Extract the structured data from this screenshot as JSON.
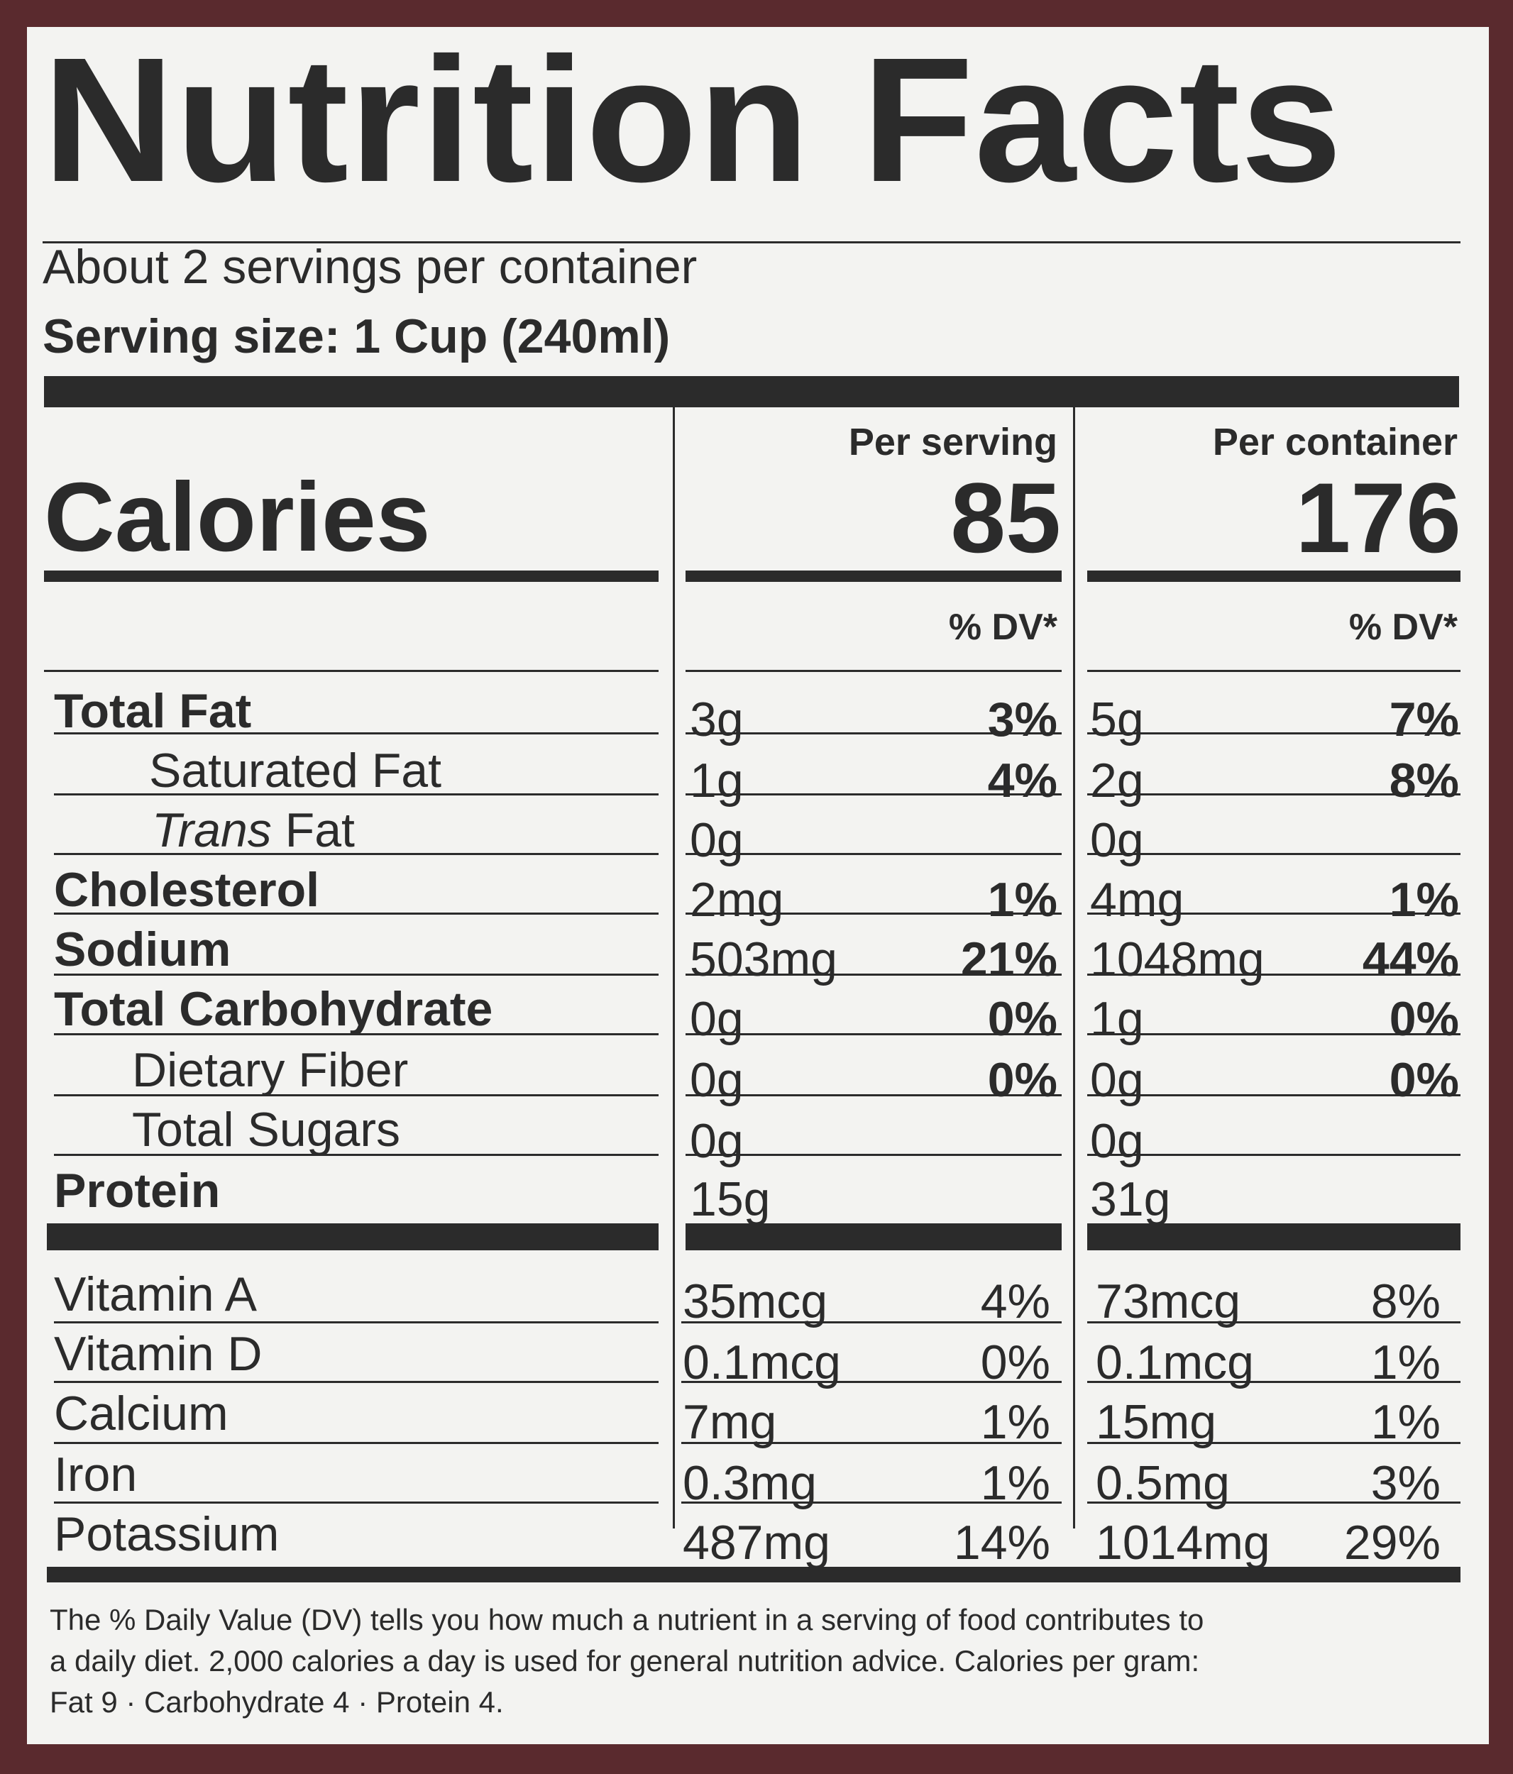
{
  "label": {
    "title": "Nutrition Facts",
    "servings_per_container": "About 2 servings per container",
    "serving_size": "Serving size: 1 Cup (240ml)",
    "calories_label": "Calories",
    "columns": [
      {
        "header": "Per serving",
        "calories": "85",
        "dv_header": "% DV*"
      },
      {
        "header": "Per container",
        "calories": "176",
        "dv_header": "% DV*"
      }
    ],
    "nutrients": [
      {
        "name": "Total Fat",
        "serving": "3g",
        "serving_dv": "3%",
        "container": "5g",
        "container_dv": "7%"
      },
      {
        "name": "Saturated Fat",
        "serving": "1g",
        "serving_dv": "4%",
        "container": "2g",
        "container_dv": "8%"
      },
      {
        "name_italic": "Trans",
        "name_rest": " Fat",
        "serving": "0g",
        "serving_dv": "",
        "container": "0g",
        "container_dv": ""
      },
      {
        "name": "Cholesterol",
        "serving": "2mg",
        "serving_dv": "1%",
        "container": "4mg",
        "container_dv": "1%"
      },
      {
        "name": "Sodium",
        "serving": "503mg",
        "serving_dv": "21%",
        "container": "1048mg",
        "container_dv": "44%"
      },
      {
        "name": "Total Carbohydrate",
        "serving": "0g",
        "serving_dv": "0%",
        "container": "1g",
        "container_dv": "0%"
      },
      {
        "name": "Dietary Fiber",
        "serving": "0g",
        "serving_dv": "0%",
        "container": "0g",
        "container_dv": "0%"
      },
      {
        "name": "Total Sugars",
        "serving": "0g",
        "serving_dv": "",
        "container": "0g",
        "container_dv": ""
      },
      {
        "name": "Protein",
        "serving": "15g",
        "serving_dv": "",
        "container": "31g",
        "container_dv": ""
      }
    ],
    "vitamins": [
      {
        "name": "Vitamin A",
        "serving": "35mcg",
        "serving_dv": "4%",
        "container": "73mcg",
        "container_dv": "8%"
      },
      {
        "name": "Vitamin D",
        "serving": "0.1mcg",
        "serving_dv": "0%",
        "container": "0.1mcg",
        "container_dv": "1%"
      },
      {
        "name": "Calcium",
        "serving": "7mg",
        "serving_dv": "1%",
        "container": "15mg",
        "container_dv": "1%"
      },
      {
        "name": "Iron",
        "serving": "0.3mg",
        "serving_dv": "1%",
        "container": "0.5mg",
        "container_dv": "3%"
      },
      {
        "name": "Potassium",
        "serving": "487mg",
        "serving_dv": "14%",
        "container": "1014mg",
        "container_dv": "29%"
      }
    ],
    "footnote_lines": [
      "The % Daily Value (DV) tells you how much a nutrient in a serving of food contributes to",
      "a daily diet. 2,000 calories a day is used for general nutrition advice. Calories per gram:",
      "Fat 9 · Carbohydrate 4 · Protein 4."
    ]
  }
}
